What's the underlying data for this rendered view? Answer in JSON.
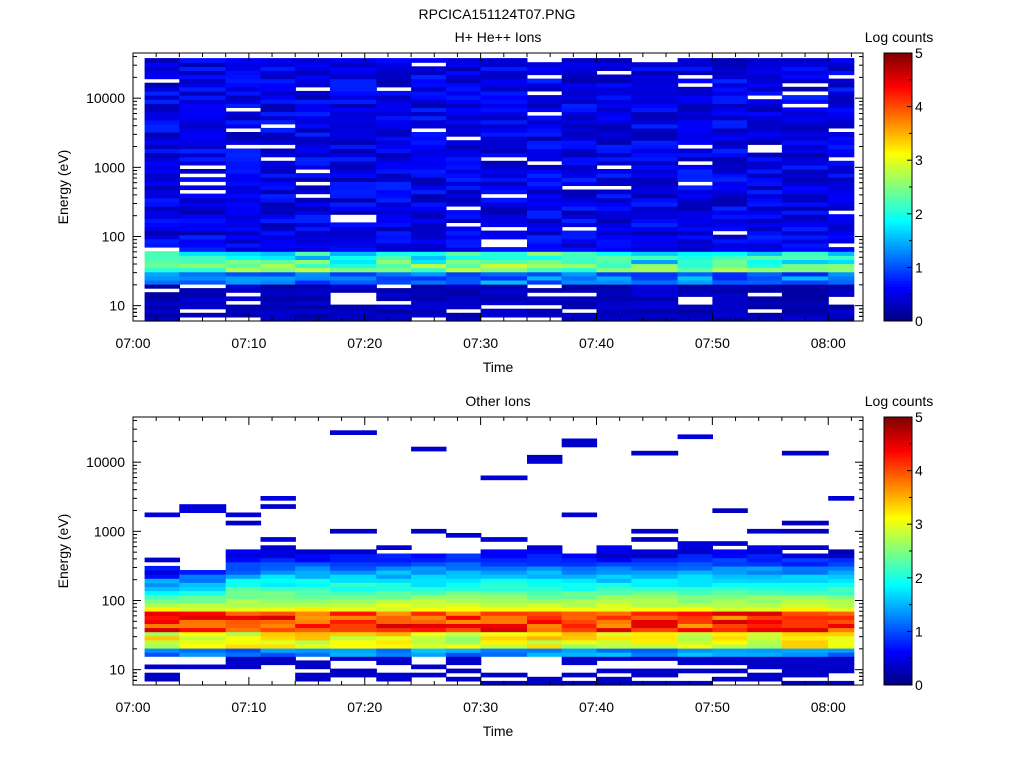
{
  "figure": {
    "title": "RPCICA151124T07.PNG"
  },
  "chart_data": [
    {
      "type": "heatmap",
      "title": "H+ He++ Ions",
      "xlabel": "Time",
      "ylabel": "Energy (eV)",
      "xticks": [
        "07:00",
        "07:10",
        "07:20",
        "07:30",
        "07:40",
        "07:50",
        "08:00"
      ],
      "xlim": [
        "07:00",
        "08:03"
      ],
      "ylim": [
        6,
        45000
      ],
      "yscale": "log",
      "yticks": [
        "10",
        "100",
        "1000",
        "10000"
      ],
      "time_bins_start": [
        "07:01",
        "07:04",
        "07:08",
        "07:11",
        "07:14",
        "07:17",
        "07:21",
        "07:24",
        "07:27",
        "07:30",
        "07:34",
        "07:37",
        "07:40",
        "07:43",
        "07:47",
        "07:50",
        "07:53",
        "07:56",
        "08:00"
      ],
      "energy_range": [
        6,
        38000
      ],
      "profile": "hplus",
      "colorbar": {
        "label": "Log counts",
        "range": [
          0,
          5
        ],
        "ticks": [
          "0",
          "1",
          "2",
          "3",
          "4",
          "5"
        ]
      }
    },
    {
      "type": "heatmap",
      "title": "Other Ions",
      "xlabel": "Time",
      "ylabel": "Energy (eV)",
      "xticks": [
        "07:00",
        "07:10",
        "07:20",
        "07:30",
        "07:40",
        "07:50",
        "08:00"
      ],
      "xlim": [
        "07:00",
        "08:03"
      ],
      "ylim": [
        6,
        45000
      ],
      "yscale": "log",
      "yticks": [
        "10",
        "100",
        "1000",
        "10000"
      ],
      "time_bins_start": [
        "07:01",
        "07:04",
        "07:08",
        "07:11",
        "07:14",
        "07:17",
        "07:21",
        "07:24",
        "07:27",
        "07:30",
        "07:34",
        "07:37",
        "07:40",
        "07:43",
        "07:47",
        "07:50",
        "07:53",
        "07:56",
        "08:00"
      ],
      "energy_range": [
        6,
        38000
      ],
      "profile": "other",
      "colorbar": {
        "label": "Log counts",
        "range": [
          0,
          5
        ],
        "ticks": [
          "0",
          "1",
          "2",
          "3",
          "4",
          "5"
        ]
      }
    }
  ]
}
